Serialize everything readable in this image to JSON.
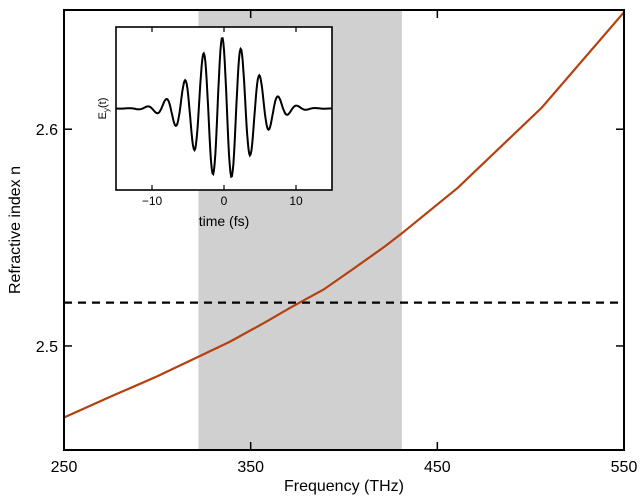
{
  "chart_data": [
    {
      "type": "line",
      "xlabel": "Frequency (THz)",
      "ylabel": "Refractive index n",
      "xlim": [
        250,
        550
      ],
      "ylim": [
        2.452,
        2.655
      ],
      "x_ticks": [
        250,
        350,
        450,
        550
      ],
      "y_ticks": [
        2.5,
        2.6
      ],
      "x_tick_labels": [
        "250",
        "350",
        "450",
        "550"
      ],
      "y_tick_labels": [
        "2.5",
        "2.6"
      ],
      "grid": false,
      "shaded_band": {
        "x_start": 322,
        "x_end": 431,
        "color": "#d0d0d0"
      },
      "reference_line": {
        "y": 2.52,
        "style": "dashed",
        "color": "#000000"
      },
      "series": [
        {
          "color": "#b5400f",
          "x": [
            250,
            276,
            300,
            322,
            339,
            358,
            372,
            389,
            404,
            422,
            431,
            461,
            506,
            550
          ],
          "y": [
            2.467,
            2.477,
            2.486,
            2.495,
            2.502,
            2.511,
            2.518,
            2.526,
            2.535,
            2.546,
            2.552,
            2.573,
            2.61,
            2.654
          ]
        }
      ]
    },
    {
      "type": "line",
      "xlabel": "time (fs)",
      "ylabel": "E_y(t)",
      "xlim": [
        -15,
        15
      ],
      "ylim": [
        -1.15,
        1.15
      ],
      "x_ticks": [
        -10,
        0,
        10
      ],
      "x_tick_labels": [
        "−10",
        "0",
        "10"
      ],
      "grid": false,
      "pulse": {
        "carrier_period_fs": 2.6,
        "envelope_sigma_fs": 4.0,
        "phase_rad": 0.6,
        "n_samples": 300
      },
      "series": [
        {
          "color": "#000000"
        }
      ]
    }
  ]
}
